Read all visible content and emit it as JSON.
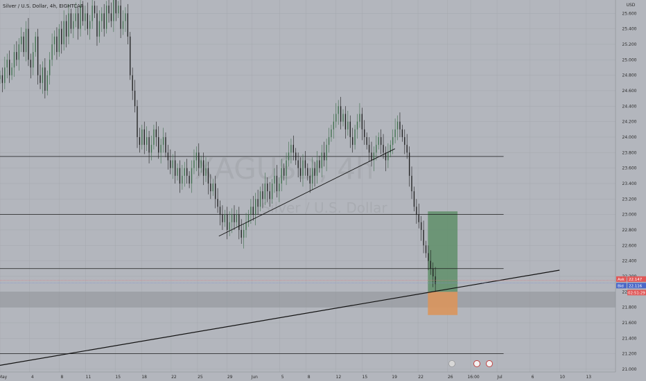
{
  "chart_data": {
    "type": "candlestick",
    "symbol": "XAGUSD",
    "interval": "4h",
    "legend": "Silver / U.S. Dollar, 4h, EIGHTCAP",
    "watermark_symbol": "XAGUSD, 4h",
    "watermark_name": "Silver / U.S. Dollar",
    "currency": "USD",
    "y_ticks": [
      "25.600",
      "25.400",
      "25.200",
      "25.000",
      "24.800",
      "24.600",
      "24.400",
      "24.200",
      "24.000",
      "23.800",
      "23.600",
      "23.400",
      "23.200",
      "23.000",
      "22.800",
      "22.600",
      "22.400",
      "22.200",
      "22.000",
      "21.800",
      "21.600",
      "21.400",
      "21.200",
      "21.000"
    ],
    "x_ticks": [
      {
        "label": "May",
        "bar": 0
      },
      {
        "label": "4",
        "bar": 18
      },
      {
        "label": "8",
        "bar": 36
      },
      {
        "label": "11",
        "bar": 52
      },
      {
        "label": "15",
        "bar": 70
      },
      {
        "label": "18",
        "bar": 86
      },
      {
        "label": "22",
        "bar": 104
      },
      {
        "label": "25",
        "bar": 120
      },
      {
        "label": "29",
        "bar": 138
      },
      {
        "label": "Jun",
        "bar": 153
      },
      {
        "label": "5",
        "bar": 170
      },
      {
        "label": "8",
        "bar": 186
      },
      {
        "label": "12",
        "bar": 204
      },
      {
        "label": "15",
        "bar": 220
      },
      {
        "label": "19",
        "bar": 238
      },
      {
        "label": "22",
        "bar": 254
      },
      {
        "label": "26",
        "bar": 272
      },
      {
        "label": "16:00",
        "bar": 286
      },
      {
        "label": "Jul",
        "bar": 302
      },
      {
        "label": "6",
        "bar": 322
      },
      {
        "label": "10",
        "bar": 340
      },
      {
        "label": "13",
        "bar": 356
      }
    ],
    "y_range": [
      20.9636,
      25.7727
    ],
    "bar_range": [
      0,
      374
    ],
    "horizontal_levels": [
      23.75,
      23.0,
      22.3
    ],
    "support_zone": [
      21.8,
      22.0
    ],
    "trendlines": [
      {
        "from": [
          0,
          21.05
        ],
        "to": [
          340,
          22.28
        ]
      },
      {
        "from": [
          133,
          22.72
        ],
        "to": [
          240,
          23.85
        ]
      }
    ],
    "position": {
      "start_bar": 260,
      "end_bar": 278,
      "entry": 22.0,
      "target": 23.04,
      "stop": 21.7
    },
    "ask": {
      "label": "Ask",
      "price": "22.147"
    },
    "bid": {
      "label": "Bid",
      "price": "22.116"
    },
    "countdown": "02:51:29",
    "closes": [
      24.8,
      24.7,
      24.9,
      25.0,
      24.8,
      24.9,
      25.1,
      25.0,
      25.2,
      25.3,
      25.1,
      25.4,
      25.0,
      24.9,
      25.1,
      25.3,
      24.8,
      24.7,
      24.9,
      24.6,
      24.8,
      25.0,
      25.2,
      25.3,
      25.1,
      25.4,
      25.2,
      25.5,
      25.3,
      25.6,
      25.4,
      25.5,
      25.6,
      25.4,
      25.7,
      25.5,
      25.6,
      25.4,
      25.5,
      25.7,
      25.6,
      25.3,
      25.5,
      25.6,
      25.4,
      25.7,
      25.6,
      25.5,
      25.8,
      25.6,
      25.7,
      25.4,
      25.5,
      25.6,
      25.3,
      24.8,
      24.6,
      24.4,
      24.0,
      23.9,
      24.1,
      23.9,
      24.0,
      23.8,
      23.9,
      24.1,
      24.0,
      23.8,
      23.9,
      24.0,
      23.8,
      23.7,
      23.6,
      23.7,
      23.5,
      23.6,
      23.4,
      23.5,
      23.6,
      23.5,
      23.4,
      23.6,
      23.7,
      23.8,
      23.6,
      23.7,
      23.5,
      23.6,
      23.4,
      23.3,
      23.4,
      23.2,
      23.1,
      23.0,
      22.9,
      23.0,
      22.8,
      22.9,
      23.0,
      22.9,
      23.0,
      22.8,
      22.7,
      22.8,
      22.9,
      23.0,
      23.1,
      23.0,
      23.2,
      23.1,
      23.3,
      23.2,
      23.4,
      23.3,
      23.2,
      23.4,
      23.5,
      23.3,
      23.4,
      23.6,
      23.5,
      23.7,
      23.8,
      23.9,
      23.8,
      23.7,
      23.6,
      23.5,
      23.7,
      23.6,
      23.5,
      23.4,
      23.6,
      23.5,
      23.7,
      23.6,
      23.8,
      23.7,
      23.9,
      24.0,
      24.1,
      24.2,
      24.3,
      24.4,
      24.2,
      24.3,
      24.1,
      24.2,
      24.0,
      23.9,
      24.1,
      24.2,
      24.3,
      24.1,
      24.0,
      23.9,
      23.8,
      23.7,
      23.8,
      23.9,
      24.0,
      23.9,
      23.8,
      23.7,
      23.8,
      23.9,
      24.0,
      24.1,
      24.2,
      24.1,
      24.0,
      23.9,
      23.8,
      23.5,
      23.3,
      23.1,
      23.0,
      22.9,
      22.8,
      22.6,
      22.5,
      22.4,
      22.3,
      22.2,
      22.1
    ]
  }
}
